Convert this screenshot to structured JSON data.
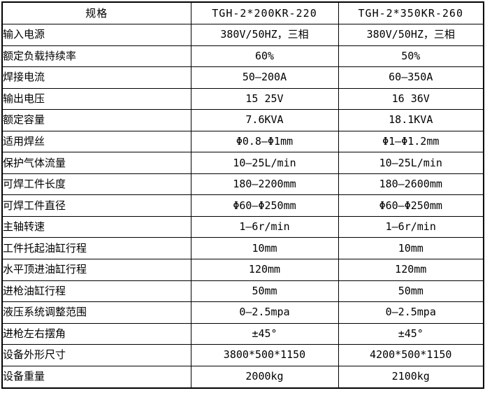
{
  "table": {
    "header": {
      "spec": "规格",
      "model1": "TGH-2*200KR-220",
      "model2": "TGH-2*350KR-260"
    },
    "rows": [
      {
        "label": "输入电源",
        "c1": "380V/50HZ，三相",
        "c2": "380V/50HZ，三相"
      },
      {
        "label": "额定负载持续率",
        "c1": "60%",
        "c2": "50%"
      },
      {
        "label": "焊接电流",
        "c1": "50—200A",
        "c2": "60—350A"
      },
      {
        "label": "输出电压",
        "c1": "15  25V",
        "c2": "16  36V"
      },
      {
        "label": "额定容量",
        "c1": "7.6KVA",
        "c2": "18.1KVA"
      },
      {
        "label": "适用焊丝",
        "c1": "Φ0.8—Φ1mm",
        "c2": "Φ1—Φ1.2mm"
      },
      {
        "label": "保护气体流量",
        "c1": "10—25L/min",
        "c2": "10—25L/min"
      },
      {
        "label": "可焊工件长度",
        "c1": "180—2200mm",
        "c2": "180—2600mm"
      },
      {
        "label": "可焊工件直径",
        "c1": "Φ60—Φ250mm",
        "c2": "Φ60—Φ250mm"
      },
      {
        "label": "主轴转速",
        "c1": "1—6r/min",
        "c2": "1—6r/min"
      },
      {
        "label": "工件托起油缸行程",
        "c1": "10mm",
        "c2": "10mm"
      },
      {
        "label": "水平顶进油缸行程",
        "c1": "120mm",
        "c2": "120mm"
      },
      {
        "label": "进枪油缸行程",
        "c1": "50mm",
        "c2": "50mm"
      },
      {
        "label": "液压系统调整范围",
        "c1": "0—2.5mpa",
        "c2": "0—2.5mpa"
      },
      {
        "label": "进枪左右摆角",
        "c1": "±45°",
        "c2": "±45°"
      },
      {
        "label": "设备外形尺寸",
        "c1": "3800*500*1150",
        "c2": "4200*500*1150"
      },
      {
        "label": "设备重量",
        "c1": "2000kg",
        "c2": "2100kg"
      }
    ],
    "colors": {
      "border": "#000000",
      "text": "#000000",
      "background": "#ffffff"
    }
  }
}
